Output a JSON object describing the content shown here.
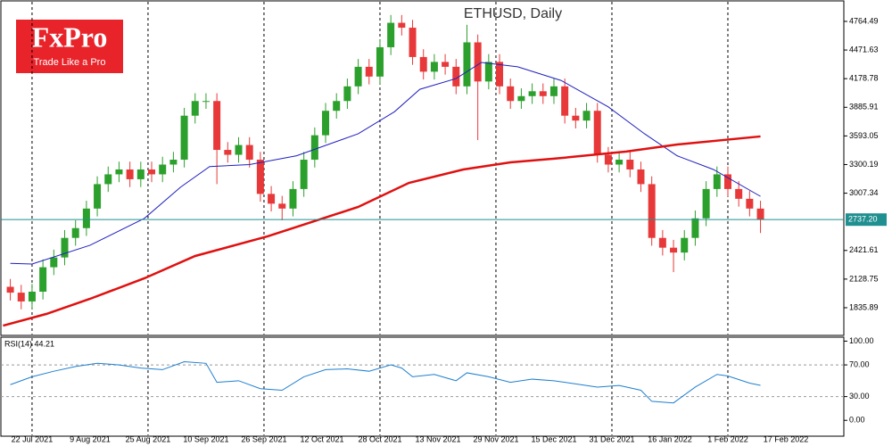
{
  "logo": {
    "brand": "FxPro",
    "tagline": "Trade Like a Pro"
  },
  "chart_data": [
    {
      "type": "candlestick",
      "title": "ETHUSD, Daily",
      "up_color": "#2ca02c",
      "down_color": "#e8393a",
      "x": [
        -6,
        -3,
        0,
        3,
        6,
        9,
        12,
        15,
        18,
        21,
        24,
        27,
        30,
        33,
        36,
        39,
        42,
        45,
        48,
        51,
        54,
        57,
        60,
        63,
        66,
        69,
        72,
        75,
        78,
        81,
        84,
        87,
        90,
        93,
        96,
        99,
        102,
        105,
        108,
        111,
        114,
        117,
        120,
        123,
        126,
        129,
        132,
        135,
        138,
        141,
        144,
        147,
        150,
        153,
        156,
        159,
        162,
        165,
        168,
        171,
        174,
        177,
        180,
        183,
        186,
        189,
        192,
        195,
        198,
        201
      ],
      "open": [
        2050,
        1990,
        1900,
        2000,
        2250,
        2350,
        2550,
        2650,
        2850,
        3100,
        3200,
        3250,
        3150,
        3250,
        3200,
        3300,
        3350,
        3800,
        3950,
        3950,
        3450,
        3400,
        3500,
        3350,
        3000,
        2900,
        2850,
        3050,
        3350,
        3600,
        3850,
        3950,
        4100,
        4300,
        4200,
        4500,
        4750,
        4700,
        4400,
        4250,
        4350,
        4300,
        4100,
        4550,
        4150,
        4350,
        4100,
        3950,
        4000,
        4050,
        4000,
        4100,
        3800,
        3750,
        3850,
        3400,
        3300,
        3350,
        3250,
        3100,
        2550,
        2450,
        2400,
        2550,
        2750,
        3050,
        3200,
        3050,
        2950,
        2850
      ],
      "high": [
        2130,
        2070,
        2080,
        2330,
        2430,
        2630,
        2730,
        2930,
        3180,
        3280,
        3330,
        3330,
        3330,
        3330,
        3380,
        3430,
        3880,
        4030,
        4030,
        4030,
        3530,
        3580,
        3580,
        3430,
        3080,
        2980,
        3130,
        3430,
        3680,
        3930,
        4030,
        4180,
        4380,
        4380,
        4580,
        4830,
        4830,
        4780,
        4480,
        4430,
        4430,
        4380,
        4730,
        4630,
        4430,
        4430,
        4180,
        4080,
        4130,
        4130,
        4180,
        4180,
        3880,
        3930,
        3930,
        3480,
        3430,
        3430,
        3330,
        3180,
        2630,
        2530,
        2630,
        2830,
        3130,
        3280,
        3280,
        3130,
        3030,
        2930
      ],
      "low": [
        1910,
        1820,
        1820,
        1920,
        2170,
        2270,
        2470,
        2570,
        2770,
        3020,
        3120,
        3070,
        3070,
        3120,
        3120,
        3220,
        3270,
        3720,
        3870,
        3100,
        3320,
        3320,
        3270,
        2920,
        2820,
        2730,
        2770,
        2970,
        3270,
        3520,
        3770,
        3870,
        4020,
        4120,
        4120,
        4420,
        4620,
        4320,
        4170,
        4170,
        4220,
        4020,
        4020,
        3550,
        4070,
        4020,
        3870,
        3870,
        3920,
        3920,
        3920,
        3720,
        3670,
        3670,
        3320,
        3220,
        3220,
        3170,
        3020,
        2470,
        2370,
        2200,
        2320,
        2470,
        2670,
        2970,
        2970,
        2870,
        2770,
        2600
      ],
      "close": [
        1990,
        1900,
        2000,
        2250,
        2350,
        2550,
        2650,
        2850,
        3100,
        3200,
        3250,
        3150,
        3250,
        3200,
        3300,
        3350,
        3800,
        3950,
        3950,
        3450,
        3400,
        3500,
        3350,
        3000,
        2900,
        2850,
        3050,
        3350,
        3600,
        3850,
        3950,
        4100,
        4300,
        4200,
        4500,
        4750,
        4700,
        4400,
        4250,
        4350,
        4300,
        4100,
        4550,
        4150,
        4350,
        4100,
        3950,
        4000,
        4050,
        4000,
        4100,
        3800,
        3750,
        3850,
        3400,
        3300,
        3350,
        3250,
        3100,
        2550,
        2450,
        2400,
        2550,
        2750,
        3050,
        3200,
        3050,
        2950,
        2850,
        2737.2
      ],
      "series": [
        {
          "color": "#1f1fbf",
          "width": 1,
          "x": [
            -6,
            0,
            16,
            31,
            41,
            49,
            60,
            73,
            90,
            100,
            107,
            117,
            124,
            134,
            146,
            159,
            169,
            178,
            188,
            201
          ],
          "values": [
            2290,
            2283,
            2475,
            2750,
            3070,
            3280,
            3300,
            3390,
            3615,
            3840,
            4070,
            4180,
            4345,
            4300,
            4160,
            3890,
            3615,
            3390,
            3250,
            2975
          ]
        },
        {
          "color": "#e01010",
          "width": 2.5,
          "x": [
            -8,
            4,
            16,
            31,
            45,
            65,
            90,
            104,
            119,
            132,
            144,
            164,
            178,
            201
          ],
          "values": [
            1653,
            1773,
            1927,
            2137,
            2365,
            2566,
            2867,
            3113,
            3250,
            3323,
            3360,
            3433,
            3505,
            3588
          ]
        }
      ],
      "current_price": {
        "value": 2737.2,
        "label": "2737.20"
      },
      "current_color": "#1f8f8f",
      "xlim": [
        -8.6,
        224
      ],
      "ylim": [
        1562,
        4965
      ],
      "yticks": [
        4764.49,
        4471.63,
        4178.78,
        3885.91,
        3593.05,
        3300.19,
        3007.34,
        2421.61,
        2128.75,
        1835.89
      ],
      "xticks": [
        {
          "value": 0,
          "label": "22 Jul 2021"
        },
        {
          "value": 16,
          "label": "9 Aug 2021"
        },
        {
          "value": 32,
          "label": "25 Aug 2021"
        },
        {
          "value": 48,
          "label": "10 Sep 2021"
        },
        {
          "value": 64,
          "label": "26 Sep 2021"
        },
        {
          "value": 80,
          "label": "12 Oct 2021"
        },
        {
          "value": 96,
          "label": "28 Oct 2021"
        },
        {
          "value": 112,
          "label": "13 Nov 2021"
        },
        {
          "value": 128,
          "label": "29 Nov 2021"
        },
        {
          "value": 144,
          "label": "15 Dec 2021"
        },
        {
          "value": 160,
          "label": "31 Dec 2021"
        },
        {
          "value": 176,
          "label": "16 Jan 2022"
        },
        {
          "value": 192,
          "label": "1 Feb 2022"
        },
        {
          "value": 208,
          "label": "17 Feb 2022"
        }
      ]
    },
    {
      "type": "line",
      "title": "RSI(14) 44.21",
      "color": "#1e7fd0",
      "x": [
        -6,
        0,
        6,
        12,
        18,
        24,
        30,
        36,
        42,
        48,
        51,
        57,
        63,
        69,
        75,
        81,
        87,
        93,
        99,
        102,
        105,
        111,
        117,
        120,
        126,
        132,
        138,
        144,
        150,
        156,
        162,
        168,
        171,
        177,
        183,
        189,
        192,
        198,
        201
      ],
      "values": [
        45,
        55,
        62,
        68,
        72,
        70,
        66,
        64,
        74,
        72,
        48,
        50,
        40,
        38,
        55,
        64,
        65,
        62,
        70,
        66,
        55,
        58,
        50,
        60,
        55,
        48,
        52,
        50,
        46,
        42,
        44,
        38,
        24,
        22,
        42,
        58,
        56,
        47,
        44.21
      ],
      "xlim": [
        -8.6,
        224
      ],
      "ylim": [
        -20,
        105
      ],
      "yticks": [
        {
          "value": 100,
          "label": "100.00"
        },
        {
          "value": 70,
          "label": "70.00"
        },
        {
          "value": 30,
          "label": "30.00"
        },
        {
          "value": 0,
          "label": "0.00"
        }
      ],
      "levels": [
        70,
        30
      ]
    }
  ]
}
